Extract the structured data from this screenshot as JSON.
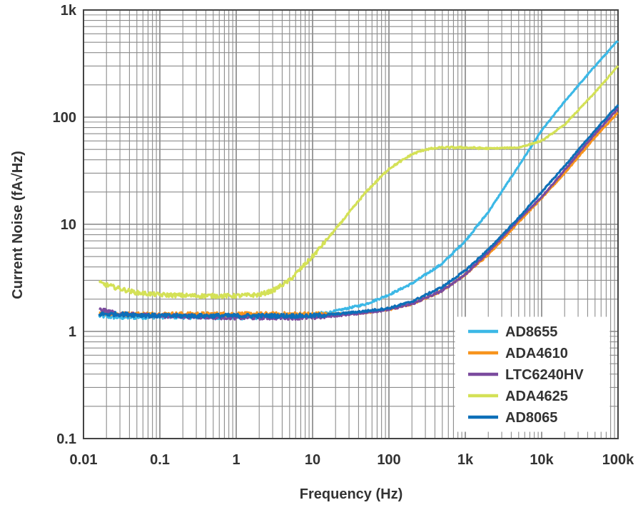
{
  "chart_data": {
    "type": "line",
    "title": "",
    "xlabel": "Frequency (Hz)",
    "ylabel": "Current Noise (fA√Hz)",
    "xscale": "log",
    "yscale": "log",
    "xlim": [
      0.01,
      100000
    ],
    "ylim": [
      0.1,
      1000
    ],
    "grid": true,
    "legend_position": "bottom-right",
    "x_tick_labels": [
      "0.01",
      "0.1",
      "1",
      "10",
      "100",
      "1k",
      "10k",
      "100k"
    ],
    "y_tick_labels": [
      "0.1",
      "1",
      "10",
      "100",
      "1k"
    ],
    "series": [
      {
        "name": "AD8655",
        "color": "#3cb8e6",
        "points": [
          [
            0.016,
            1.4
          ],
          [
            0.03,
            1.35
          ],
          [
            0.1,
            1.38
          ],
          [
            1,
            1.35
          ],
          [
            10,
            1.4
          ],
          [
            20,
            1.55
          ],
          [
            50,
            1.8
          ],
          [
            100,
            2.2
          ],
          [
            200,
            2.8
          ],
          [
            500,
            4.3
          ],
          [
            1000,
            7
          ],
          [
            2000,
            13
          ],
          [
            5000,
            35
          ],
          [
            10000,
            75
          ],
          [
            20000,
            140
          ],
          [
            50000,
            300
          ],
          [
            100000,
            520
          ]
        ]
      },
      {
        "name": "ADA4610",
        "color": "#f7941d",
        "points": [
          [
            0.016,
            1.5
          ],
          [
            0.03,
            1.45
          ],
          [
            0.1,
            1.45
          ],
          [
            1,
            1.45
          ],
          [
            10,
            1.45
          ],
          [
            20,
            1.45
          ],
          [
            50,
            1.5
          ],
          [
            100,
            1.6
          ],
          [
            200,
            1.8
          ],
          [
            500,
            2.4
          ],
          [
            1000,
            3.4
          ],
          [
            2000,
            5.2
          ],
          [
            5000,
            10.5
          ],
          [
            10000,
            17.5
          ],
          [
            20000,
            30
          ],
          [
            50000,
            65
          ],
          [
            100000,
            110
          ]
        ]
      },
      {
        "name": "LTC6240HV",
        "color": "#7b4b9e",
        "points": [
          [
            0.016,
            1.6
          ],
          [
            0.03,
            1.45
          ],
          [
            0.1,
            1.4
          ],
          [
            1,
            1.35
          ],
          [
            10,
            1.35
          ],
          [
            20,
            1.4
          ],
          [
            50,
            1.5
          ],
          [
            100,
            1.6
          ],
          [
            200,
            1.8
          ],
          [
            500,
            2.4
          ],
          [
            1000,
            3.4
          ],
          [
            2000,
            5.5
          ],
          [
            5000,
            11
          ],
          [
            10000,
            18
          ],
          [
            20000,
            32
          ],
          [
            50000,
            70
          ],
          [
            100000,
            120
          ]
        ]
      },
      {
        "name": "ADA4625",
        "color": "#d4e157",
        "points": [
          [
            0.016,
            2.85
          ],
          [
            0.03,
            2.5
          ],
          [
            0.05,
            2.3
          ],
          [
            0.1,
            2.2
          ],
          [
            0.3,
            2.15
          ],
          [
            1,
            2.15
          ],
          [
            2,
            2.2
          ],
          [
            3,
            2.4
          ],
          [
            5,
            3.0
          ],
          [
            10,
            5.0
          ],
          [
            20,
            9
          ],
          [
            50,
            20
          ],
          [
            100,
            33
          ],
          [
            200,
            45
          ],
          [
            300,
            50
          ],
          [
            500,
            52
          ],
          [
            1000,
            52
          ],
          [
            2000,
            51
          ],
          [
            5000,
            52
          ],
          [
            10000,
            60
          ],
          [
            20000,
            85
          ],
          [
            50000,
            170
          ],
          [
            100000,
            300
          ]
        ]
      },
      {
        "name": "AD8065",
        "color": "#0d6fb8",
        "points": [
          [
            0.016,
            1.45
          ],
          [
            0.03,
            1.45
          ],
          [
            0.1,
            1.4
          ],
          [
            1,
            1.4
          ],
          [
            10,
            1.4
          ],
          [
            20,
            1.45
          ],
          [
            50,
            1.55
          ],
          [
            100,
            1.65
          ],
          [
            200,
            1.9
          ],
          [
            500,
            2.6
          ],
          [
            1000,
            3.7
          ],
          [
            2000,
            5.8
          ],
          [
            5000,
            11.5
          ],
          [
            10000,
            20
          ],
          [
            20000,
            35
          ],
          [
            50000,
            75
          ],
          [
            100000,
            130
          ]
        ]
      }
    ]
  }
}
